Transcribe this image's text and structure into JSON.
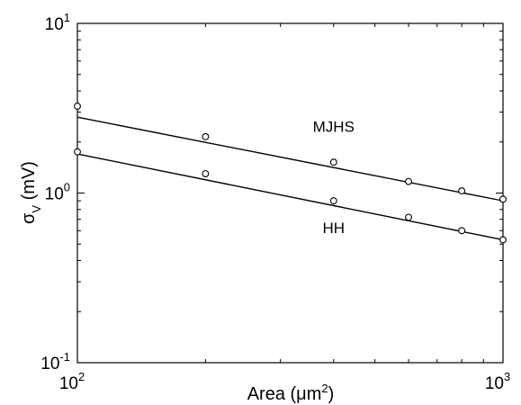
{
  "chart_data": {
    "type": "scatter",
    "xscale": "log",
    "yscale": "log",
    "xlim": [
      100,
      1000
    ],
    "ylim": [
      0.1,
      10
    ],
    "grid": false,
    "xlabel": {
      "prefix": "Area (",
      "mu": "μ",
      "unit": "m",
      "sup": "2",
      "suffix": ")"
    },
    "ylabel": {
      "sigma": "σ",
      "sub": "V",
      "rest": " (mV)"
    },
    "xticks": [
      {
        "value": 100,
        "base": "10",
        "exp": "2"
      },
      {
        "value": 1000,
        "base": "10",
        "exp": "3"
      }
    ],
    "yticks": [
      {
        "value": 0.1,
        "base": "10",
        "exp": "-1"
      },
      {
        "value": 1,
        "base": "10",
        "exp": "0"
      },
      {
        "value": 10,
        "base": "10",
        "exp": "1"
      }
    ],
    "series": [
      {
        "name": "MJHS",
        "points": [
          [
            100,
            3.25
          ],
          [
            200,
            2.15
          ],
          [
            400,
            1.52
          ],
          [
            600,
            1.17
          ],
          [
            800,
            1.03
          ],
          [
            1000,
            0.92
          ]
        ],
        "fit": [
          [
            100,
            2.8
          ],
          [
            1000,
            0.9
          ]
        ],
        "label_at": [
          400,
          2.3
        ]
      },
      {
        "name": "HH",
        "points": [
          [
            100,
            1.75
          ],
          [
            200,
            1.3
          ],
          [
            400,
            0.9
          ],
          [
            600,
            0.72
          ],
          [
            800,
            0.6
          ],
          [
            1000,
            0.53
          ]
        ],
        "fit": [
          [
            100,
            1.7
          ],
          [
            1000,
            0.53
          ]
        ],
        "label_at": [
          400,
          0.58
        ]
      }
    ]
  }
}
